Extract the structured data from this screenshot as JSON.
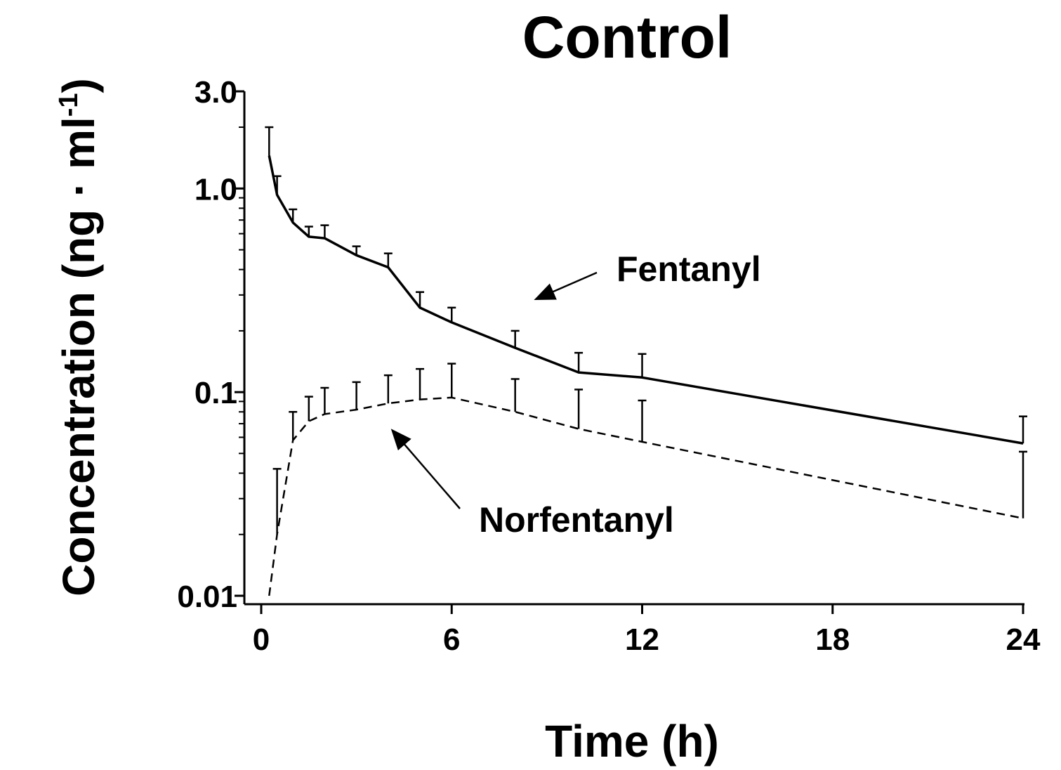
{
  "chart_data": {
    "type": "line",
    "title": "Control",
    "xlabel": "Time (h)",
    "ylabel_main": "Concentration (ng · ml",
    "ylabel_sup": "-1",
    "ylabel_end": ")",
    "xlim": [
      0,
      24
    ],
    "ylim": [
      0.01,
      3.0
    ],
    "yscale": "log",
    "grid": false,
    "legend": "none",
    "x_ticks": [
      0,
      6,
      12,
      18,
      24
    ],
    "x_tick_labels": [
      "0",
      "6",
      "12",
      "18",
      "24"
    ],
    "y_ticks": [
      0.01,
      0.1,
      1.0,
      3.0
    ],
    "y_tick_labels": [
      "0.01",
      "0.1",
      "1.0",
      "3.0"
    ],
    "series": [
      {
        "name": "Fentanyl",
        "style": "solid",
        "color": "#000000",
        "x": [
          0.25,
          0.5,
          1,
          1.5,
          2,
          3,
          4,
          5,
          6,
          8,
          10,
          12,
          24
        ],
        "y": [
          1.45,
          0.93,
          0.68,
          0.58,
          0.57,
          0.47,
          0.41,
          0.26,
          0.22,
          0.165,
          0.125,
          0.118,
          0.056
        ],
        "err_upper": [
          2.0,
          1.15,
          0.79,
          0.65,
          0.66,
          0.52,
          0.48,
          0.31,
          0.26,
          0.2,
          0.156,
          0.154,
          0.076
        ]
      },
      {
        "name": "Norfentanyl",
        "style": "dashed",
        "color": "#000000",
        "x": [
          0.25,
          0.5,
          1,
          1.5,
          2,
          3,
          4,
          5,
          6,
          8,
          10,
          12,
          24
        ],
        "y": [
          0.01,
          0.02,
          0.058,
          0.072,
          0.078,
          0.082,
          0.088,
          0.092,
          0.094,
          0.08,
          0.066,
          0.057,
          0.024
        ],
        "err_upper": [
          0.01,
          0.042,
          0.08,
          0.095,
          0.105,
          0.112,
          0.121,
          0.13,
          0.138,
          0.116,
          0.103,
          0.091,
          0.051
        ]
      }
    ],
    "annotations": [
      {
        "text": "Fentanyl",
        "series": "Fentanyl"
      },
      {
        "text": "Norfentanyl",
        "series": "Norfentanyl"
      }
    ]
  }
}
